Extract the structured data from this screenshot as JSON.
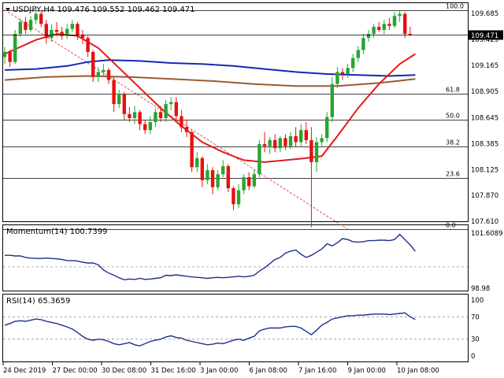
{
  "header": {
    "title": "USDJPY,H4",
    "open": "109.476",
    "high": "109.552",
    "low": "109.462",
    "close": "109.471"
  },
  "colors": {
    "bull": "#26a531",
    "bear": "#e81010",
    "sma_fast": "#e21b1b",
    "sma_mid": "#1428b4",
    "sma_slow": "#9c5a32",
    "fib": "#d03030",
    "indicator": "#1e2f8e",
    "grid": "#9a9a9a",
    "frame": "#000000",
    "price_tag_bg": "#000000",
    "price_tag_fg": "#ffffff"
  },
  "chart_data": [
    {
      "type": "candlestick",
      "title": "USDJPY,H4",
      "ylim": [
        107.61,
        109.685
      ],
      "yticks": [
        109.685,
        109.425,
        109.165,
        108.905,
        108.645,
        108.385,
        108.125,
        107.87,
        107.61
      ],
      "ytick_labels": [
        "109.685",
        "109.425",
        "109.165",
        "108.905",
        "108.645",
        "108.385",
        "108.125",
        "107.870",
        "107.610"
      ],
      "current_price": 109.471,
      "current_price_label": "109.471",
      "fib_levels": [
        {
          "label": "100.0",
          "price": 109.72
        },
        {
          "label": "61.8",
          "price": 108.88
        },
        {
          "label": "50.0",
          "price": 108.62
        },
        {
          "label": "38.2",
          "price": 108.36
        },
        {
          "label": "23.6",
          "price": 108.04
        },
        {
          "label": "0.0",
          "price": 107.53
        }
      ],
      "fib_trendline": {
        "from": [
          0,
          109.72
        ],
        "to": [
          66,
          107.53
        ]
      },
      "candles": [
        {
          "o": 109.25,
          "h": 109.35,
          "l": 109.18,
          "c": 109.3
        },
        {
          "o": 109.3,
          "h": 109.32,
          "l": 109.15,
          "c": 109.2
        },
        {
          "o": 109.2,
          "h": 109.52,
          "l": 109.18,
          "c": 109.48
        },
        {
          "o": 109.48,
          "h": 109.63,
          "l": 109.45,
          "c": 109.6
        },
        {
          "o": 109.6,
          "h": 109.65,
          "l": 109.48,
          "c": 109.52
        },
        {
          "o": 109.52,
          "h": 109.66,
          "l": 109.5,
          "c": 109.62
        },
        {
          "o": 109.62,
          "h": 109.72,
          "l": 109.58,
          "c": 109.68
        },
        {
          "o": 109.68,
          "h": 109.7,
          "l": 109.55,
          "c": 109.58
        },
        {
          "o": 109.58,
          "h": 109.62,
          "l": 109.38,
          "c": 109.44
        },
        {
          "o": 109.44,
          "h": 109.58,
          "l": 109.4,
          "c": 109.52
        },
        {
          "o": 109.52,
          "h": 109.6,
          "l": 109.46,
          "c": 109.5
        },
        {
          "o": 109.5,
          "h": 109.55,
          "l": 109.42,
          "c": 109.46
        },
        {
          "o": 109.46,
          "h": 109.58,
          "l": 109.43,
          "c": 109.53
        },
        {
          "o": 109.53,
          "h": 109.62,
          "l": 109.5,
          "c": 109.58
        },
        {
          "o": 109.58,
          "h": 109.6,
          "l": 109.42,
          "c": 109.47
        },
        {
          "o": 109.47,
          "h": 109.52,
          "l": 109.38,
          "c": 109.44
        },
        {
          "o": 109.44,
          "h": 109.46,
          "l": 109.25,
          "c": 109.3
        },
        {
          "o": 109.3,
          "h": 109.32,
          "l": 109.0,
          "c": 109.05
        },
        {
          "o": 109.05,
          "h": 109.15,
          "l": 109.0,
          "c": 109.1
        },
        {
          "o": 109.1,
          "h": 109.18,
          "l": 109.05,
          "c": 109.12
        },
        {
          "o": 109.12,
          "h": 109.14,
          "l": 108.98,
          "c": 109.02
        },
        {
          "o": 109.02,
          "h": 109.05,
          "l": 108.7,
          "c": 108.78
        },
        {
          "o": 108.78,
          "h": 108.92,
          "l": 108.74,
          "c": 108.88
        },
        {
          "o": 108.88,
          "h": 108.9,
          "l": 108.62,
          "c": 108.68
        },
        {
          "o": 108.68,
          "h": 108.75,
          "l": 108.6,
          "c": 108.64
        },
        {
          "o": 108.64,
          "h": 108.76,
          "l": 108.58,
          "c": 108.7
        },
        {
          "o": 108.7,
          "h": 108.72,
          "l": 108.52,
          "c": 108.58
        },
        {
          "o": 108.58,
          "h": 108.62,
          "l": 108.48,
          "c": 108.52
        },
        {
          "o": 108.52,
          "h": 108.66,
          "l": 108.48,
          "c": 108.6
        },
        {
          "o": 108.6,
          "h": 108.74,
          "l": 108.55,
          "c": 108.7
        },
        {
          "o": 108.7,
          "h": 108.76,
          "l": 108.6,
          "c": 108.64
        },
        {
          "o": 108.64,
          "h": 108.82,
          "l": 108.6,
          "c": 108.78
        },
        {
          "o": 108.78,
          "h": 108.85,
          "l": 108.72,
          "c": 108.8
        },
        {
          "o": 108.8,
          "h": 108.85,
          "l": 108.6,
          "c": 108.66
        },
        {
          "o": 108.66,
          "h": 108.72,
          "l": 108.5,
          "c": 108.55
        },
        {
          "o": 108.55,
          "h": 108.62,
          "l": 108.45,
          "c": 108.5
        },
        {
          "o": 108.5,
          "h": 108.52,
          "l": 108.1,
          "c": 108.15
        },
        {
          "o": 108.15,
          "h": 108.3,
          "l": 108.1,
          "c": 108.24
        },
        {
          "o": 108.24,
          "h": 108.26,
          "l": 107.95,
          "c": 108.02
        },
        {
          "o": 108.02,
          "h": 108.18,
          "l": 107.98,
          "c": 108.12
        },
        {
          "o": 108.12,
          "h": 108.15,
          "l": 107.88,
          "c": 107.95
        },
        {
          "o": 107.95,
          "h": 108.12,
          "l": 107.92,
          "c": 108.08
        },
        {
          "o": 108.08,
          "h": 108.22,
          "l": 108.05,
          "c": 108.16
        },
        {
          "o": 108.16,
          "h": 108.18,
          "l": 107.9,
          "c": 107.94
        },
        {
          "o": 107.94,
          "h": 107.96,
          "l": 107.72,
          "c": 107.78
        },
        {
          "o": 107.78,
          "h": 107.98,
          "l": 107.74,
          "c": 107.92
        },
        {
          "o": 107.92,
          "h": 108.08,
          "l": 107.88,
          "c": 108.05
        },
        {
          "o": 108.05,
          "h": 108.1,
          "l": 107.92,
          "c": 107.96
        },
        {
          "o": 107.96,
          "h": 108.12,
          "l": 107.94,
          "c": 108.08
        },
        {
          "o": 108.08,
          "h": 108.42,
          "l": 108.05,
          "c": 108.38
        },
        {
          "o": 108.38,
          "h": 108.5,
          "l": 108.3,
          "c": 108.36
        },
        {
          "o": 108.36,
          "h": 108.45,
          "l": 108.28,
          "c": 108.42
        },
        {
          "o": 108.42,
          "h": 108.48,
          "l": 108.3,
          "c": 108.34
        },
        {
          "o": 108.34,
          "h": 108.46,
          "l": 108.3,
          "c": 108.44
        },
        {
          "o": 108.44,
          "h": 108.48,
          "l": 108.32,
          "c": 108.36
        },
        {
          "o": 108.36,
          "h": 108.5,
          "l": 108.33,
          "c": 108.46
        },
        {
          "o": 108.46,
          "h": 108.55,
          "l": 108.35,
          "c": 108.4
        },
        {
          "o": 108.4,
          "h": 108.58,
          "l": 108.36,
          "c": 108.52
        },
        {
          "o": 108.52,
          "h": 108.6,
          "l": 108.38,
          "c": 108.42
        },
        {
          "o": 108.42,
          "h": 108.55,
          "l": 107.55,
          "c": 108.2
        },
        {
          "o": 108.2,
          "h": 108.45,
          "l": 108.1,
          "c": 108.4
        },
        {
          "o": 108.4,
          "h": 108.48,
          "l": 108.36,
          "c": 108.44
        },
        {
          "o": 108.44,
          "h": 108.7,
          "l": 108.4,
          "c": 108.65
        },
        {
          "o": 108.65,
          "h": 109.05,
          "l": 108.6,
          "c": 108.98
        },
        {
          "o": 108.98,
          "h": 109.15,
          "l": 108.94,
          "c": 109.1
        },
        {
          "o": 109.1,
          "h": 109.14,
          "l": 109.02,
          "c": 109.08
        },
        {
          "o": 109.08,
          "h": 109.18,
          "l": 109.04,
          "c": 109.14
        },
        {
          "o": 109.14,
          "h": 109.28,
          "l": 109.1,
          "c": 109.24
        },
        {
          "o": 109.24,
          "h": 109.36,
          "l": 109.2,
          "c": 109.32
        },
        {
          "o": 109.32,
          "h": 109.48,
          "l": 109.28,
          "c": 109.44
        },
        {
          "o": 109.44,
          "h": 109.52,
          "l": 109.4,
          "c": 109.48
        },
        {
          "o": 109.48,
          "h": 109.58,
          "l": 109.44,
          "c": 109.55
        },
        {
          "o": 109.55,
          "h": 109.6,
          "l": 109.5,
          "c": 109.52
        },
        {
          "o": 109.52,
          "h": 109.62,
          "l": 109.48,
          "c": 109.58
        },
        {
          "o": 109.58,
          "h": 109.64,
          "l": 109.52,
          "c": 109.56
        },
        {
          "o": 109.56,
          "h": 109.7,
          "l": 109.54,
          "c": 109.66
        },
        {
          "o": 109.66,
          "h": 109.72,
          "l": 109.6,
          "c": 109.68
        },
        {
          "o": 109.68,
          "h": 109.7,
          "l": 109.44,
          "c": 109.48
        },
        {
          "o": 109.48,
          "h": 109.55,
          "l": 109.46,
          "c": 109.47
        }
      ],
      "sma_fast": [
        [
          0,
          109.28
        ],
        [
          6,
          109.42
        ],
        [
          10,
          109.48
        ],
        [
          14,
          109.46
        ],
        [
          18,
          109.34
        ],
        [
          22,
          109.14
        ],
        [
          26,
          108.94
        ],
        [
          30,
          108.74
        ],
        [
          34,
          108.56
        ],
        [
          38,
          108.4
        ],
        [
          42,
          108.3
        ],
        [
          46,
          108.22
        ],
        [
          50,
          108.2
        ],
        [
          54,
          108.22
        ],
        [
          58,
          108.24
        ],
        [
          61,
          108.26
        ],
        [
          64,
          108.46
        ],
        [
          68,
          108.74
        ],
        [
          72,
          108.98
        ],
        [
          76,
          109.18
        ],
        [
          79,
          109.28
        ]
      ],
      "sma_mid": [
        [
          0,
          109.12
        ],
        [
          6,
          109.13
        ],
        [
          12,
          109.16
        ],
        [
          16,
          109.2
        ],
        [
          20,
          109.22
        ],
        [
          26,
          109.21
        ],
        [
          32,
          109.19
        ],
        [
          38,
          109.18
        ],
        [
          44,
          109.16
        ],
        [
          50,
          109.13
        ],
        [
          56,
          109.1
        ],
        [
          62,
          109.08
        ],
        [
          68,
          109.07
        ],
        [
          74,
          109.06
        ],
        [
          79,
          109.07
        ]
      ],
      "sma_slow": [
        [
          0,
          109.02
        ],
        [
          8,
          109.05
        ],
        [
          16,
          109.06
        ],
        [
          24,
          109.05
        ],
        [
          32,
          109.03
        ],
        [
          40,
          109.01
        ],
        [
          48,
          108.98
        ],
        [
          56,
          108.96
        ],
        [
          64,
          108.96
        ],
        [
          72,
          108.99
        ],
        [
          79,
          109.03
        ]
      ]
    },
    {
      "type": "line",
      "title": "Momentum(14)",
      "value_label": "100.7399",
      "ylim": [
        98.98,
        101.6089
      ],
      "ytick_labels": [
        "101.6089",
        "98.98"
      ],
      "reference": 100.0,
      "values": [
        100.55,
        100.55,
        100.52,
        100.52,
        100.45,
        100.42,
        100.4,
        100.4,
        100.42,
        100.4,
        100.38,
        100.35,
        100.3,
        100.3,
        100.28,
        100.22,
        100.18,
        100.18,
        100.1,
        99.85,
        99.7,
        99.6,
        99.48,
        99.38,
        99.42,
        99.4,
        99.45,
        99.4,
        99.42,
        99.45,
        99.48,
        99.6,
        99.58,
        99.62,
        99.58,
        99.55,
        99.52,
        99.5,
        99.48,
        99.45,
        99.48,
        99.5,
        99.48,
        99.5,
        99.52,
        99.55,
        99.52,
        99.55,
        99.6,
        99.8,
        99.95,
        100.15,
        100.35,
        100.45,
        100.65,
        100.75,
        100.8,
        100.6,
        100.45,
        100.55,
        100.7,
        100.85,
        101.1,
        101.0,
        101.15,
        101.35,
        101.3,
        101.2,
        101.18,
        101.2,
        101.25,
        101.25,
        101.27,
        101.27,
        101.25,
        101.3,
        101.55,
        101.3,
        101.05,
        100.74
      ]
    },
    {
      "type": "line",
      "title": "RSI(14)",
      "value_label": "65.3659",
      "ylim": [
        0,
        100
      ],
      "ytick_labels": [
        "100",
        "70",
        "30",
        "0"
      ],
      "levels": [
        70,
        30
      ],
      "values": [
        55,
        58,
        62,
        63,
        62,
        64,
        66,
        65,
        62,
        60,
        58,
        55,
        52,
        48,
        42,
        35,
        30,
        28,
        30,
        29,
        26,
        22,
        20,
        22,
        24,
        20,
        18,
        22,
        26,
        28,
        30,
        34,
        36,
        33,
        32,
        28,
        26,
        24,
        22,
        20,
        21,
        23,
        22,
        25,
        28,
        30,
        28,
        32,
        35,
        45,
        48,
        50,
        50,
        50,
        52,
        53,
        53,
        50,
        44,
        38,
        46,
        55,
        60,
        66,
        68,
        70,
        72,
        72,
        73,
        73,
        74,
        75,
        75,
        75,
        74,
        75,
        76,
        77,
        70,
        65.37
      ]
    }
  ],
  "time_axis": {
    "labels": [
      {
        "text": "24 Dec 2019",
        "index": 0
      },
      {
        "text": "27 Dec 00:00",
        "index": 12
      },
      {
        "text": "30 Dec 08:00",
        "index": 24
      },
      {
        "text": "31 Dec 16:00",
        "index": 36
      },
      {
        "text": "3 Jan 00:00",
        "index": 48
      },
      {
        "text": "6 Jan 08:00",
        "index": 60
      },
      {
        "text": "7 Jan 16:00",
        "index": 72
      },
      {
        "text": "9 Jan 00:00",
        "index": 84
      },
      {
        "text": "10 Jan 08:00",
        "index": 96
      }
    ]
  }
}
